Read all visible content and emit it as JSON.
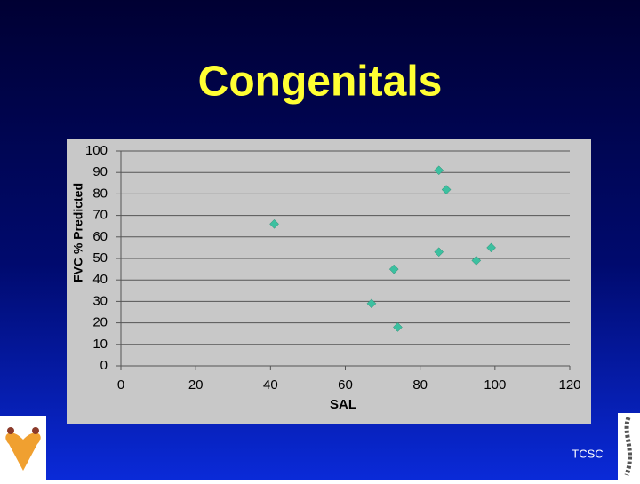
{
  "chart_data": {
    "type": "scatter",
    "title": "Congenitals",
    "x_label": "SAL",
    "y_label": "FVC % Predicted",
    "x": [
      41,
      85,
      87,
      85,
      73,
      67,
      74,
      95,
      99
    ],
    "values": [
      66,
      91,
      82,
      53,
      45,
      29,
      18,
      49,
      55
    ],
    "color": "#3cc0a0",
    "xlim": [
      0,
      120
    ],
    "xticks": [
      0,
      20,
      40,
      60,
      80,
      100,
      120
    ],
    "ylim": [
      0,
      100
    ],
    "yticks": [
      0,
      10,
      20,
      30,
      40,
      50,
      60,
      70,
      80,
      90,
      100
    ],
    "grid": true
  },
  "footer": "TCSC"
}
